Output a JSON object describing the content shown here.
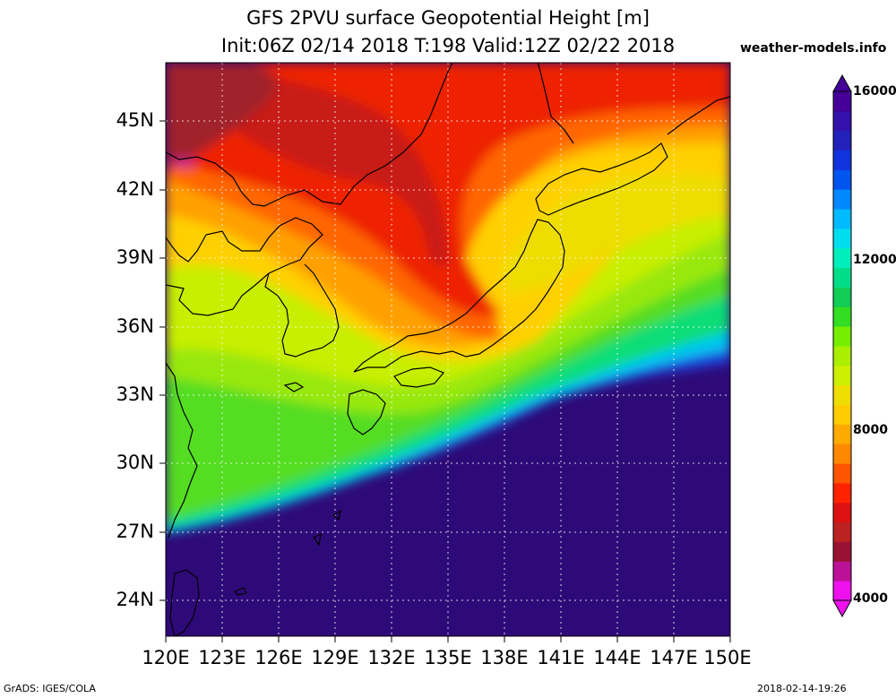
{
  "title": {
    "line1": "GFS 2PVU surface Geopotential Height [m]",
    "line2": "Init:06Z 02/14 2018 T:198 Valid:12Z 02/22 2018"
  },
  "site": "weather-models.info",
  "lat_labels": [
    "45N",
    "42N",
    "39N",
    "36N",
    "33N",
    "30N",
    "27N",
    "24N"
  ],
  "lon_labels": [
    "120E",
    "123E",
    "126E",
    "129E",
    "132E",
    "135E",
    "138E",
    "141E",
    "144E",
    "147E",
    "150E"
  ],
  "colorbar": {
    "labels": [
      "16000",
      "12000",
      "8000",
      "4000"
    ],
    "colors": [
      "#ee11ee",
      "#bb1199",
      "#991133",
      "#bb2222",
      "#dd1111",
      "#ff2200",
      "#ff5500",
      "#ff8800",
      "#ffaa00",
      "#ffcc00",
      "#eedd00",
      "#ccee00",
      "#aaee00",
      "#77ee00",
      "#33dd22",
      "#11cc55",
      "#00dd88",
      "#00eebb",
      "#00ddee",
      "#00bbff",
      "#0088ff",
      "#0055ee",
      "#1133dd",
      "#2222bb",
      "#3311aa",
      "#440099"
    ]
  },
  "footer": {
    "left": "GrADS: IGES/COLA",
    "right": "2018-02-14-19:26"
  }
}
